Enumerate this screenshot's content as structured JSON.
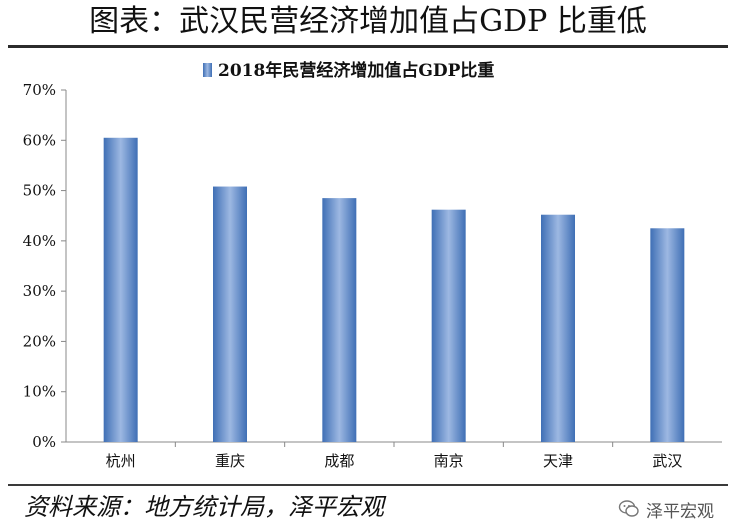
{
  "title": "图表：武汉民营经济增加值占GDP 比重低",
  "source": "资料来源：地方统计局，泽平宏观",
  "watermark": "泽平宏观",
  "colors": {
    "bar_edge": "#3f6fb5",
    "bar_mid": "#9db8e2",
    "axis": "#888888",
    "text": "#111111"
  },
  "chart_data": {
    "type": "bar",
    "legend": "2018年民营经济增加值占GDP比重",
    "legend_position": "top-center",
    "categories": [
      "杭州",
      "重庆",
      "成都",
      "南京",
      "天津",
      "武汉"
    ],
    "values": [
      0.605,
      0.508,
      0.485,
      0.462,
      0.452,
      0.425
    ],
    "ylim": [
      0,
      0.7
    ],
    "yticks": [
      "0%",
      "10%",
      "20%",
      "30%",
      "40%",
      "50%",
      "60%",
      "70%"
    ],
    "grid": false
  }
}
